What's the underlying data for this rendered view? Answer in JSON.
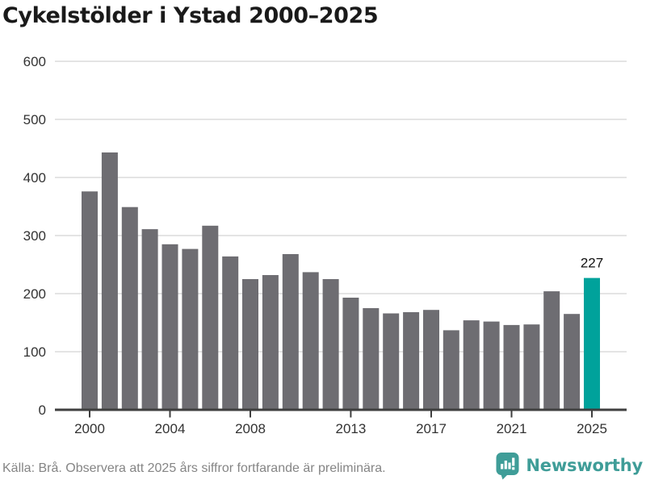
{
  "title": "Cykelstölder i Ystad 2000–2025",
  "footer": {
    "source_note": "Källa: Brå. Observera att 2025 års siffror fortfarande är preliminära.",
    "brand": "Newsworthy"
  },
  "colors": {
    "bar": "#6e6d72",
    "highlight": "#00a29b",
    "axis": "#3f3f3f",
    "gridline": "#e4e4e4",
    "tick_text": "#333333",
    "title_text": "#1a1a1a",
    "footer_text": "#858585",
    "brand_teal": "#3f9d98",
    "annotation_text": "#111111"
  },
  "chart_data": {
    "type": "bar",
    "title": "Cykelstölder i Ystad 2000–2025",
    "categories": [
      2000,
      2001,
      2002,
      2003,
      2004,
      2005,
      2006,
      2007,
      2008,
      2009,
      2010,
      2011,
      2012,
      2013,
      2014,
      2015,
      2016,
      2017,
      2018,
      2019,
      2020,
      2021,
      2022,
      2023,
      2024,
      2025
    ],
    "values": [
      376,
      443,
      349,
      311,
      285,
      277,
      317,
      264,
      225,
      232,
      268,
      237,
      225,
      193,
      175,
      166,
      168,
      172,
      137,
      154,
      152,
      146,
      147,
      204,
      165,
      227
    ],
    "highlight_year": 2025,
    "annotation": {
      "year": 2025,
      "text": "227"
    },
    "x_tick_labels": [
      "2000",
      "2004",
      "2008",
      "2013",
      "2017",
      "2021",
      "2025"
    ],
    "y_ticks": [
      0,
      100,
      200,
      300,
      400,
      500,
      600
    ],
    "ylim": [
      0,
      600
    ],
    "grid": true,
    "legend": "none",
    "xlabel": "",
    "ylabel": ""
  }
}
